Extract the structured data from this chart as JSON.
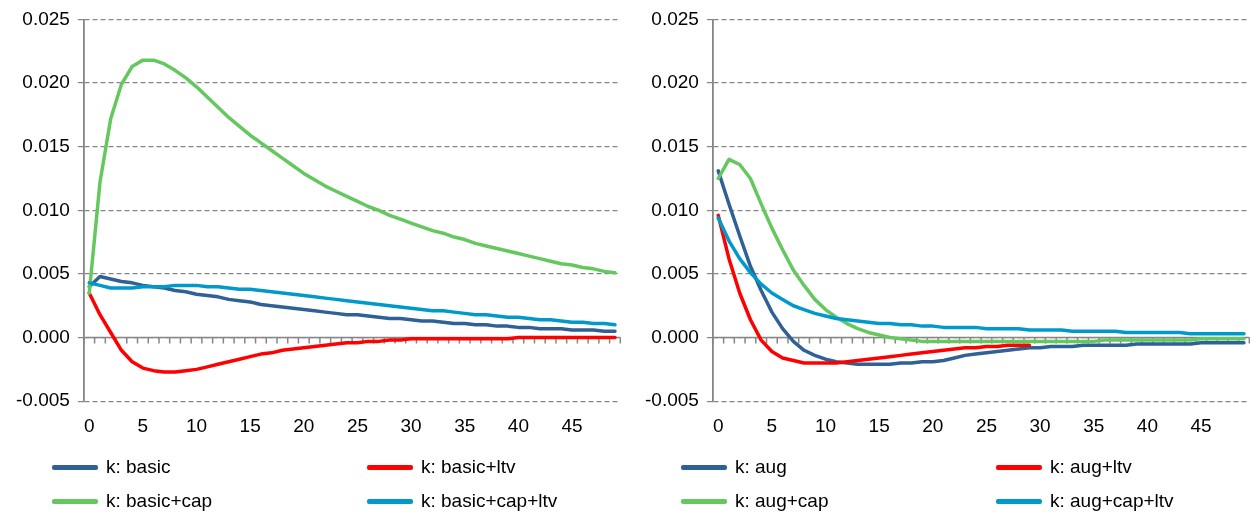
{
  "chart_data": [
    {
      "type": "line",
      "categories": [
        "0",
        null,
        null,
        null,
        null,
        "5",
        null,
        null,
        null,
        null,
        "10",
        null,
        null,
        null,
        null,
        "15",
        null,
        null,
        null,
        null,
        "20",
        null,
        null,
        null,
        null,
        "25",
        null,
        null,
        null,
        null,
        "30",
        null,
        null,
        null,
        null,
        "35",
        null,
        null,
        null,
        null,
        "40",
        null,
        null,
        null,
        null,
        "45",
        null,
        null,
        null,
        null
      ],
      "ylim": [
        -0.005,
        0.025
      ],
      "yticks": [
        {
          "value": -0.005,
          "label": "-0.005"
        },
        {
          "value": 0,
          "label": "0.000"
        },
        {
          "value": 0.005,
          "label": "0.005"
        },
        {
          "value": 0.01,
          "label": "0.010"
        },
        {
          "value": 0.015,
          "label": "0.015"
        },
        {
          "value": 0.02,
          "label": "0.020"
        },
        {
          "value": 0.025,
          "label": "0.025"
        }
      ],
      "grid": "y",
      "legend": "bottom",
      "marker": "none",
      "line_style": "solid",
      "series": [
        {
          "name": "k: basic",
          "color": "#2f6096",
          "values": [
            0.004,
            0.0048,
            0.0046,
            0.0044,
            0.0043,
            0.0041,
            0.004,
            0.0039,
            0.0037,
            0.0036,
            0.0034,
            0.0033,
            0.0032,
            0.003,
            0.0029,
            0.0028,
            0.0026,
            0.0025,
            0.0024,
            0.0023,
            0.0022,
            0.0021,
            0.002,
            0.0019,
            0.0018,
            0.0018,
            0.0017,
            0.0016,
            0.0015,
            0.0015,
            0.0014,
            0.0013,
            0.0013,
            0.0012,
            0.0011,
            0.0011,
            0.001,
            0.001,
            0.0009,
            0.0009,
            0.0008,
            0.0008,
            0.0007,
            0.0007,
            0.0007,
            0.0006,
            0.0006,
            0.0006,
            0.0005,
            0.0005
          ]
        },
        {
          "name": "k: basic+ltv",
          "color": "#ff0000",
          "values": [
            0.0035,
            0.0018,
            0.0004,
            -0.001,
            -0.0019,
            -0.0024,
            -0.0026,
            -0.0027,
            -0.0027,
            -0.0026,
            -0.0025,
            -0.0023,
            -0.0021,
            -0.0019,
            -0.0017,
            -0.0015,
            -0.0013,
            -0.0012,
            -0.001,
            -0.0009,
            -0.0008,
            -0.0007,
            -0.0006,
            -0.0005,
            -0.0004,
            -0.0004,
            -0.0003,
            -0.0003,
            -0.0002,
            -0.0002,
            -0.0001,
            -0.0001,
            -0.0001,
            -0.0001,
            -0.0001,
            -0.0001,
            -0.0001,
            -0.0001,
            -0.0001,
            -0.0001,
            0.0,
            0.0,
            0.0,
            0.0,
            0.0,
            0.0,
            0.0,
            0.0,
            0.0,
            0.0
          ]
        },
        {
          "name": "k: basic+cap",
          "color": "#64c85f",
          "values": [
            0.0035,
            0.0122,
            0.0172,
            0.0199,
            0.0213,
            0.0218,
            0.0218,
            0.0215,
            0.021,
            0.0204,
            0.0197,
            0.0189,
            0.0181,
            0.0173,
            0.0166,
            0.0159,
            0.0153,
            0.0147,
            0.0141,
            0.0135,
            0.0129,
            0.0124,
            0.0119,
            0.0115,
            0.0111,
            0.0107,
            0.0103,
            0.01,
            0.0096,
            0.0093,
            0.009,
            0.0087,
            0.0084,
            0.0082,
            0.0079,
            0.0077,
            0.0074,
            0.0072,
            0.007,
            0.0068,
            0.0066,
            0.0064,
            0.0062,
            0.006,
            0.0058,
            0.0057,
            0.0055,
            0.0054,
            0.0052,
            0.0051
          ]
        },
        {
          "name": "k: basic+cap+ltv",
          "color": "#0099cc",
          "values": [
            0.0043,
            0.0041,
            0.0039,
            0.0039,
            0.0039,
            0.004,
            0.004,
            0.004,
            0.0041,
            0.0041,
            0.0041,
            0.004,
            0.004,
            0.0039,
            0.0038,
            0.0038,
            0.0037,
            0.0036,
            0.0035,
            0.0034,
            0.0033,
            0.0032,
            0.0031,
            0.003,
            0.0029,
            0.0028,
            0.0027,
            0.0026,
            0.0025,
            0.0024,
            0.0023,
            0.0022,
            0.0021,
            0.0021,
            0.002,
            0.0019,
            0.0018,
            0.0018,
            0.0017,
            0.0016,
            0.0016,
            0.0015,
            0.0014,
            0.0014,
            0.0013,
            0.0012,
            0.0012,
            0.0011,
            0.0011,
            0.001
          ]
        }
      ]
    },
    {
      "type": "line",
      "categories": [
        "0",
        null,
        null,
        null,
        null,
        "5",
        null,
        null,
        null,
        null,
        "10",
        null,
        null,
        null,
        null,
        "15",
        null,
        null,
        null,
        null,
        "20",
        null,
        null,
        null,
        null,
        "25",
        null,
        null,
        null,
        null,
        "30",
        null,
        null,
        null,
        null,
        "35",
        null,
        null,
        null,
        null,
        "40",
        null,
        null,
        null,
        null,
        "45",
        null,
        null,
        null,
        null
      ],
      "ylim": [
        -0.005,
        0.025
      ],
      "yticks": [
        {
          "value": -0.005,
          "label": "-0.005"
        },
        {
          "value": 0,
          "label": "0.000"
        },
        {
          "value": 0.005,
          "label": "0.005"
        },
        {
          "value": 0.01,
          "label": "0.010"
        },
        {
          "value": 0.015,
          "label": "0.015"
        },
        {
          "value": 0.02,
          "label": "0.020"
        },
        {
          "value": 0.025,
          "label": "0.025"
        }
      ],
      "grid": "y",
      "legend": "bottom",
      "marker": "none",
      "line_style": "solid",
      "series": [
        {
          "name": "k: aug",
          "color": "#2f6096",
          "values": [
            0.0131,
            0.0105,
            0.008,
            0.0056,
            0.0037,
            0.002,
            0.0007,
            -0.0003,
            -0.001,
            -0.0014,
            -0.0017,
            -0.0019,
            -0.002,
            -0.0021,
            -0.0021,
            -0.0021,
            -0.0021,
            -0.002,
            -0.002,
            -0.0019,
            -0.0019,
            -0.0018,
            -0.0016,
            -0.0014,
            -0.0013,
            -0.0012,
            -0.0011,
            -0.001,
            -0.0009,
            -0.0008,
            -0.0008,
            -0.0007,
            -0.0007,
            -0.0007,
            -0.0006,
            -0.0006,
            -0.0006,
            -0.0006,
            -0.0006,
            -0.0005,
            -0.0005,
            -0.0005,
            -0.0005,
            -0.0005,
            -0.0005,
            -0.0004,
            -0.0004,
            -0.0004,
            -0.0004,
            -0.0004
          ]
        },
        {
          "name": "k: aug+ltv",
          "color": "#ff0000",
          "values": [
            0.0096,
            0.0062,
            0.0035,
            0.0014,
            -0.0002,
            -0.0011,
            -0.0016,
            -0.0018,
            -0.002,
            -0.002,
            -0.002,
            -0.002,
            -0.0019,
            -0.0018,
            -0.0017,
            -0.0016,
            -0.0015,
            -0.0014,
            -0.0013,
            -0.0012,
            -0.0011,
            -0.001,
            -0.0009,
            -0.0008,
            -0.0008,
            -0.0007,
            -0.0007,
            -0.0006,
            -0.0006,
            -0.0006,
            null,
            null,
            null,
            null,
            null,
            null,
            null,
            null,
            null,
            null,
            null,
            null,
            null,
            null,
            null,
            null,
            null,
            null,
            null,
            null
          ]
        },
        {
          "name": "k: aug+cap",
          "color": "#64c85f",
          "values": [
            0.0125,
            0.014,
            0.0136,
            0.0125,
            0.0105,
            0.0086,
            0.0069,
            0.0053,
            0.0041,
            0.003,
            0.0022,
            0.0016,
            0.0011,
            0.0007,
            0.0004,
            0.0002,
            0.0,
            -0.0001,
            -0.0002,
            -0.0003,
            -0.0003,
            -0.0003,
            -0.0003,
            -0.0003,
            -0.0003,
            -0.0003,
            -0.0003,
            -0.0003,
            -0.0003,
            -0.0003,
            -0.0003,
            -0.0003,
            -0.0003,
            -0.0003,
            -0.0003,
            -0.0003,
            -0.0002,
            -0.0002,
            -0.0002,
            -0.0002,
            -0.0002,
            -0.0002,
            -0.0002,
            -0.0002,
            -0.0002,
            -0.0001,
            -0.0001,
            -0.0001,
            -0.0001,
            -0.0001
          ]
        },
        {
          "name": "k: aug+cap+ltv",
          "color": "#0099cc",
          "values": [
            0.0094,
            0.0076,
            0.0062,
            0.0051,
            0.0042,
            0.0035,
            0.003,
            0.0025,
            0.0022,
            0.0019,
            0.0017,
            0.0015,
            0.0014,
            0.0013,
            0.0012,
            0.0011,
            0.0011,
            0.001,
            0.001,
            0.0009,
            0.0009,
            0.0008,
            0.0008,
            0.0008,
            0.0008,
            0.0007,
            0.0007,
            0.0007,
            0.0007,
            0.0006,
            0.0006,
            0.0006,
            0.0006,
            0.0005,
            0.0005,
            0.0005,
            0.0005,
            0.0005,
            0.0004,
            0.0004,
            0.0004,
            0.0004,
            0.0004,
            0.0004,
            0.0003,
            0.0003,
            0.0003,
            0.0003,
            0.0003,
            0.0003
          ]
        }
      ]
    }
  ]
}
